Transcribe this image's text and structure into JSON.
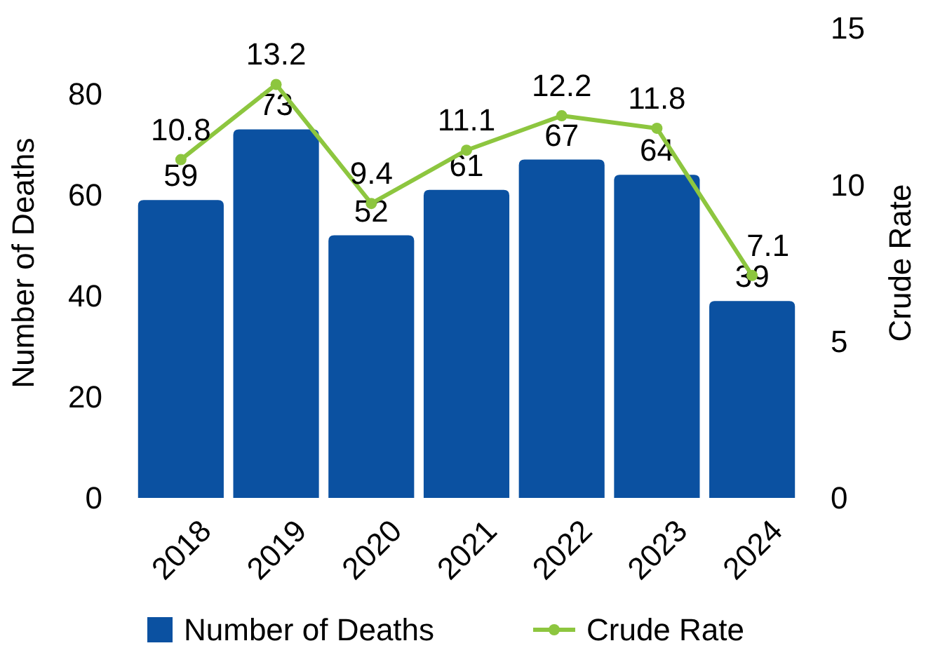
{
  "chart_data": {
    "type": "bar",
    "ylabel": "Number of Deaths",
    "y2label": "Crude Rate",
    "categories": [
      "2018",
      "2019",
      "2020",
      "2021",
      "2022",
      "2023",
      "2024"
    ],
    "series": [
      {
        "name": "Number of Deaths",
        "color": "#0b51a1",
        "values": [
          59,
          73,
          52,
          61,
          67,
          64,
          39
        ]
      },
      {
        "name": "Crude Rate",
        "type": "line",
        "axis": "y2",
        "color": "#8dc63f",
        "marker": "circle",
        "values": [
          10.8,
          13.2,
          9.4,
          11.1,
          12.2,
          11.8,
          7.1
        ]
      }
    ],
    "data_labels": true,
    "ylim": [
      0,
      80
    ],
    "yticks": [
      0,
      20,
      40,
      60,
      80
    ],
    "y2lim": [
      0,
      15
    ],
    "y2ticks": [
      0,
      5,
      10,
      15
    ],
    "grid": false,
    "legend": "bottom"
  }
}
